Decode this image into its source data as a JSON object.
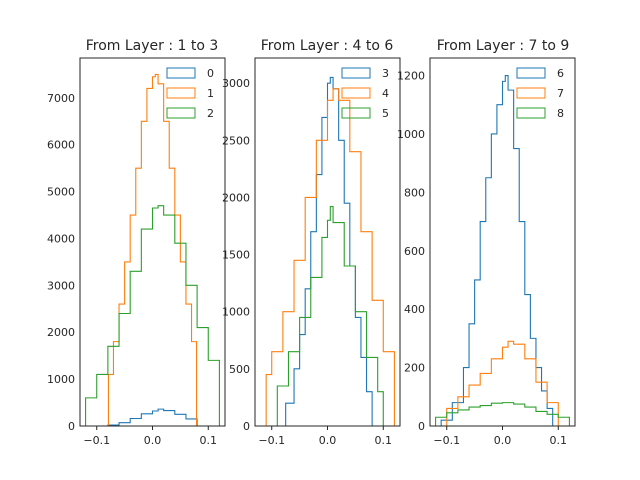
{
  "chart_data": [
    {
      "type": "histogram",
      "title": "From Layer : 1 to 3",
      "xlim": [
        -0.13,
        0.13
      ],
      "ylim": [
        0,
        7850
      ],
      "xticks": [
        -0.1,
        0.0,
        0.1
      ],
      "xtick_labels": [
        "−0.1",
        "0.0",
        "0.1"
      ],
      "yticks": [
        0,
        1000,
        2000,
        3000,
        4000,
        5000,
        6000,
        7000
      ],
      "ytick_labels": [
        "0",
        "1000",
        "2000",
        "3000",
        "4000",
        "5000",
        "6000",
        "7000"
      ],
      "grid": false,
      "legend_position": "top-right",
      "series": [
        {
          "name": "0",
          "color": "#1f77b4",
          "points": [
            [
              -0.08,
              0
            ],
            [
              -0.08,
              20
            ],
            [
              -0.06,
              70
            ],
            [
              -0.04,
              160
            ],
            [
              -0.02,
              260
            ],
            [
              0.0,
              320
            ],
            [
              0.01,
              360
            ],
            [
              0.02,
              330
            ],
            [
              0.04,
              250
            ],
            [
              0.06,
              150
            ],
            [
              0.08,
              70
            ],
            [
              0.08,
              0
            ]
          ]
        },
        {
          "name": "1",
          "color": "#ff7f0e",
          "points": [
            [
              -0.079,
              0
            ],
            [
              -0.079,
              1100
            ],
            [
              -0.07,
              1800
            ],
            [
              -0.06,
              2600
            ],
            [
              -0.05,
              3500
            ],
            [
              -0.04,
              4500
            ],
            [
              -0.03,
              5500
            ],
            [
              -0.02,
              6500
            ],
            [
              -0.01,
              7200
            ],
            [
              0.0,
              7450
            ],
            [
              0.005,
              7500
            ],
            [
              0.01,
              7300
            ],
            [
              0.02,
              6500
            ],
            [
              0.03,
              5500
            ],
            [
              0.04,
              4500
            ],
            [
              0.05,
              3500
            ],
            [
              0.06,
              2600
            ],
            [
              0.07,
              1800
            ],
            [
              0.079,
              1100
            ],
            [
              0.079,
              0
            ]
          ]
        },
        {
          "name": "2",
          "color": "#2ca02c",
          "points": [
            [
              -0.12,
              0
            ],
            [
              -0.12,
              600
            ],
            [
              -0.1,
              1100
            ],
            [
              -0.08,
              1700
            ],
            [
              -0.06,
              2400
            ],
            [
              -0.04,
              3300
            ],
            [
              -0.02,
              4200
            ],
            [
              0.0,
              4650
            ],
            [
              0.01,
              4700
            ],
            [
              0.02,
              4500
            ],
            [
              0.04,
              3900
            ],
            [
              0.06,
              3000
            ],
            [
              0.08,
              2100
            ],
            [
              0.1,
              1400
            ],
            [
              0.12,
              700
            ],
            [
              0.12,
              0
            ]
          ]
        }
      ]
    },
    {
      "type": "histogram",
      "title": "From Layer : 4 to 6",
      "xlim": [
        -0.13,
        0.13
      ],
      "ylim": [
        0,
        3220
      ],
      "xticks": [
        -0.1,
        0.0,
        0.1
      ],
      "xtick_labels": [
        "−0.1",
        "0.0",
        "0.1"
      ],
      "yticks": [
        0,
        500,
        1000,
        1500,
        2000,
        2500,
        3000
      ],
      "ytick_labels": [
        "0",
        "500",
        "1000",
        "1500",
        "2000",
        "2500",
        "3000"
      ],
      "grid": false,
      "legend_position": "top-right",
      "series": [
        {
          "name": "3",
          "color": "#1f77b4",
          "points": [
            [
              -0.075,
              0
            ],
            [
              -0.075,
              200
            ],
            [
              -0.06,
              500
            ],
            [
              -0.05,
              800
            ],
            [
              -0.04,
              1200
            ],
            [
              -0.03,
              1700
            ],
            [
              -0.02,
              2200
            ],
            [
              -0.01,
              2700
            ],
            [
              0.0,
              3000
            ],
            [
              0.005,
              3050
            ],
            [
              0.01,
              2950
            ],
            [
              0.02,
              2500
            ],
            [
              0.03,
              1950
            ],
            [
              0.04,
              1400
            ],
            [
              0.05,
              950
            ],
            [
              0.06,
              600
            ],
            [
              0.07,
              300
            ],
            [
              0.08,
              100
            ],
            [
              0.08,
              0
            ]
          ]
        },
        {
          "name": "4",
          "color": "#ff7f0e",
          "points": [
            [
              -0.11,
              0
            ],
            [
              -0.11,
              450
            ],
            [
              -0.1,
              650
            ],
            [
              -0.08,
              1000
            ],
            [
              -0.06,
              1450
            ],
            [
              -0.04,
              2000
            ],
            [
              -0.02,
              2500
            ],
            [
              0.0,
              2850
            ],
            [
              0.01,
              2950
            ],
            [
              0.02,
              2850
            ],
            [
              0.04,
              2400
            ],
            [
              0.06,
              1700
            ],
            [
              0.08,
              1100
            ],
            [
              0.1,
              650
            ],
            [
              0.12,
              300
            ],
            [
              0.12,
              0
            ]
          ]
        },
        {
          "name": "5",
          "color": "#2ca02c",
          "points": [
            [
              -0.09,
              0
            ],
            [
              -0.09,
              350
            ],
            [
              -0.07,
              650
            ],
            [
              -0.05,
              950
            ],
            [
              -0.03,
              1300
            ],
            [
              -0.01,
              1650
            ],
            [
              0.0,
              1800
            ],
            [
              0.005,
              1920
            ],
            [
              0.01,
              1780
            ],
            [
              0.03,
              1400
            ],
            [
              0.05,
              1000
            ],
            [
              0.07,
              600
            ],
            [
              0.09,
              300
            ],
            [
              0.1,
              150
            ],
            [
              0.1,
              0
            ]
          ]
        }
      ]
    },
    {
      "type": "histogram",
      "title": "From Layer : 7 to 9",
      "xlim": [
        -0.13,
        0.13
      ],
      "ylim": [
        0,
        1260
      ],
      "xticks": [
        -0.1,
        0.0,
        0.1
      ],
      "xtick_labels": [
        "−0.1",
        "0.0",
        "0.1"
      ],
      "yticks": [
        0,
        200,
        400,
        600,
        800,
        1000,
        1200
      ],
      "ytick_labels": [
        "0",
        "200",
        "400",
        "600",
        "800",
        "1000",
        "1200"
      ],
      "grid": false,
      "legend_position": "top-right",
      "series": [
        {
          "name": "6",
          "color": "#1f77b4",
          "points": [
            [
              -0.11,
              0
            ],
            [
              -0.11,
              20
            ],
            [
              -0.09,
              80
            ],
            [
              -0.07,
              200
            ],
            [
              -0.06,
              350
            ],
            [
              -0.05,
              500
            ],
            [
              -0.04,
              700
            ],
            [
              -0.03,
              850
            ],
            [
              -0.02,
              1000
            ],
            [
              -0.01,
              1100
            ],
            [
              0.0,
              1180
            ],
            [
              0.005,
              1200
            ],
            [
              0.01,
              1150
            ],
            [
              0.02,
              950
            ],
            [
              0.03,
              700
            ],
            [
              0.04,
              450
            ],
            [
              0.05,
              300
            ],
            [
              0.06,
              200
            ],
            [
              0.07,
              120
            ],
            [
              0.08,
              60
            ],
            [
              0.09,
              20
            ],
            [
              0.09,
              0
            ]
          ]
        },
        {
          "name": "7",
          "color": "#ff7f0e",
          "points": [
            [
              -0.1,
              0
            ],
            [
              -0.1,
              60
            ],
            [
              -0.08,
              100
            ],
            [
              -0.06,
              140
            ],
            [
              -0.04,
              180
            ],
            [
              -0.02,
              230
            ],
            [
              0.0,
              270
            ],
            [
              0.01,
              290
            ],
            [
              0.02,
              280
            ],
            [
              0.04,
              230
            ],
            [
              0.06,
              150
            ],
            [
              0.08,
              80
            ],
            [
              0.1,
              30
            ],
            [
              0.1,
              0
            ]
          ]
        },
        {
          "name": "8",
          "color": "#2ca02c",
          "points": [
            [
              -0.12,
              0
            ],
            [
              -0.12,
              30
            ],
            [
              -0.1,
              45
            ],
            [
              -0.08,
              55
            ],
            [
              -0.06,
              65
            ],
            [
              -0.04,
              70
            ],
            [
              -0.02,
              78
            ],
            [
              0.0,
              80
            ],
            [
              0.02,
              75
            ],
            [
              0.04,
              65
            ],
            [
              0.06,
              50
            ],
            [
              0.08,
              40
            ],
            [
              0.1,
              30
            ],
            [
              0.12,
              20
            ],
            [
              0.12,
              0
            ]
          ]
        }
      ]
    }
  ]
}
